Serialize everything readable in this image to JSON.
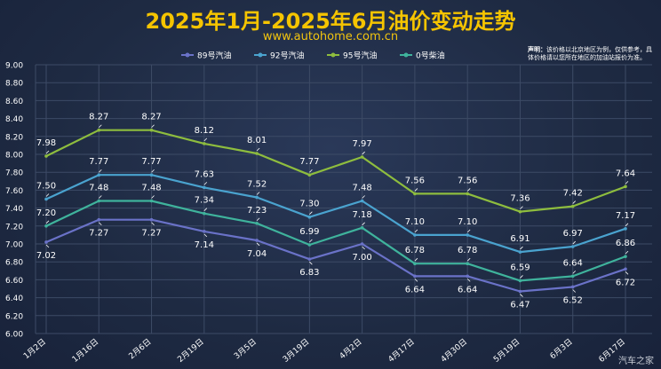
{
  "header": {
    "title": "2025年1月-2025年6月油价变动走势",
    "website": "www.autohome.com.cn",
    "disclaimer_bold": "声明：",
    "disclaimer_text": "该价格以北京地区为例，仅供参考，具体价格请以您所在地区的加油站报价为准。",
    "watermark": "汽车之家"
  },
  "chart_data": {
    "type": "line",
    "title": "2025年1月-2025年6月油价变动走势",
    "xlabel": "",
    "ylabel": "",
    "ylim": [
      6.0,
      9.0
    ],
    "yticks": [
      "6.00",
      "6.20",
      "6.40",
      "6.60",
      "6.80",
      "7.00",
      "7.20",
      "7.40",
      "7.60",
      "7.80",
      "8.00",
      "8.20",
      "8.40",
      "8.60",
      "8.80",
      "9.00"
    ],
    "grid": true,
    "legend_position": "top-center",
    "categories": [
      "1月2日",
      "1月16日",
      "2月6日",
      "2月19日",
      "3月5日",
      "3月19日",
      "4月2日",
      "4月17日",
      "4月30日",
      "5月19日",
      "6月3日",
      "6月17日"
    ],
    "series": [
      {
        "name": "89号汽油",
        "color": "#6a72c8",
        "values": [
          7.02,
          7.27,
          7.27,
          7.14,
          7.04,
          6.83,
          7.0,
          6.64,
          6.64,
          6.47,
          6.52,
          6.72
        ],
        "label_pos": "below"
      },
      {
        "name": "92号汽油",
        "color": "#4aa3cf",
        "values": [
          7.5,
          7.77,
          7.77,
          7.63,
          7.52,
          7.3,
          7.48,
          7.1,
          7.1,
          6.91,
          6.97,
          7.17
        ],
        "label_pos": "above"
      },
      {
        "name": "95号汽油",
        "color": "#8ebd3e",
        "values": [
          7.98,
          8.27,
          8.27,
          8.12,
          8.01,
          7.77,
          7.97,
          7.56,
          7.56,
          7.36,
          7.42,
          7.64
        ],
        "label_pos": "above"
      },
      {
        "name": "0号柴油",
        "color": "#3fb39c",
        "values": [
          7.2,
          7.48,
          7.48,
          7.34,
          7.23,
          6.99,
          7.18,
          6.78,
          6.78,
          6.59,
          6.64,
          6.86
        ],
        "label_pos": "above"
      }
    ],
    "style": {
      "grid_color": "#3d4b66",
      "axis_text_color": "#ffffff",
      "label_color": "#ffffff"
    }
  }
}
